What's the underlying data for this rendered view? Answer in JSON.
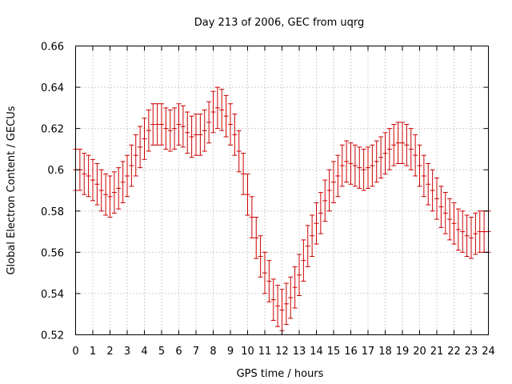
{
  "chart_data": {
    "type": "errorbar",
    "title": "Day 213 of 2006, GEC from uqrg",
    "xlabel": "GPS time / hours",
    "ylabel": "Global Electron Content / GECUs",
    "xlim": [
      0,
      24
    ],
    "ylim": [
      0.52,
      0.66
    ],
    "xticks": [
      "0",
      "1",
      "2",
      "3",
      "4",
      "5",
      "6",
      "7",
      "8",
      "9",
      "10",
      "11",
      "12",
      "13",
      "14",
      "15",
      "16",
      "17",
      "18",
      "19",
      "20",
      "21",
      "22",
      "23",
      "24"
    ],
    "yticks": [
      "0.52",
      "0.54",
      "0.56",
      "0.58",
      "0.6",
      "0.62",
      "0.64",
      "0.66"
    ],
    "grid": true,
    "error": 0.01,
    "series_color": "#cc0000",
    "x": [
      0,
      0.25,
      0.5,
      0.75,
      1,
      1.25,
      1.5,
      1.75,
      2,
      2.25,
      2.5,
      2.75,
      3,
      3.25,
      3.5,
      3.75,
      4,
      4.25,
      4.5,
      4.75,
      5,
      5.25,
      5.5,
      5.75,
      6,
      6.25,
      6.5,
      6.75,
      7,
      7.25,
      7.5,
      7.75,
      8,
      8.25,
      8.5,
      8.75,
      9,
      9.25,
      9.5,
      9.75,
      10,
      10.25,
      10.5,
      10.75,
      11,
      11.25,
      11.5,
      11.75,
      12,
      12.25,
      12.5,
      12.75,
      13,
      13.25,
      13.5,
      13.75,
      14,
      14.25,
      14.5,
      14.75,
      15,
      15.25,
      15.5,
      15.75,
      16,
      16.25,
      16.5,
      16.75,
      17,
      17.25,
      17.5,
      17.75,
      18,
      18.25,
      18.5,
      18.75,
      19,
      19.25,
      19.5,
      19.75,
      20,
      20.25,
      20.5,
      20.75,
      21,
      21.25,
      21.5,
      21.75,
      22,
      22.25,
      22.5,
      22.75,
      23,
      23.25,
      23.5,
      23.75,
      24
    ],
    "y": [
      0.6,
      0.6,
      0.598,
      0.597,
      0.595,
      0.593,
      0.59,
      0.588,
      0.587,
      0.589,
      0.591,
      0.594,
      0.597,
      0.602,
      0.607,
      0.611,
      0.615,
      0.619,
      0.622,
      0.622,
      0.622,
      0.62,
      0.619,
      0.62,
      0.622,
      0.621,
      0.618,
      0.616,
      0.617,
      0.617,
      0.619,
      0.623,
      0.628,
      0.63,
      0.629,
      0.626,
      0.622,
      0.617,
      0.609,
      0.598,
      0.588,
      0.577,
      0.567,
      0.558,
      0.55,
      0.546,
      0.537,
      0.534,
      0.532,
      0.535,
      0.538,
      0.543,
      0.549,
      0.556,
      0.563,
      0.568,
      0.574,
      0.579,
      0.585,
      0.59,
      0.594,
      0.597,
      0.602,
      0.604,
      0.603,
      0.602,
      0.601,
      0.6,
      0.601,
      0.602,
      0.604,
      0.606,
      0.608,
      0.61,
      0.612,
      0.613,
      0.613,
      0.612,
      0.61,
      0.607,
      0.602,
      0.597,
      0.593,
      0.59,
      0.586,
      0.582,
      0.579,
      0.576,
      0.574,
      0.571,
      0.57,
      0.568,
      0.567,
      0.569,
      0.57,
      0.57,
      0.57
    ]
  }
}
